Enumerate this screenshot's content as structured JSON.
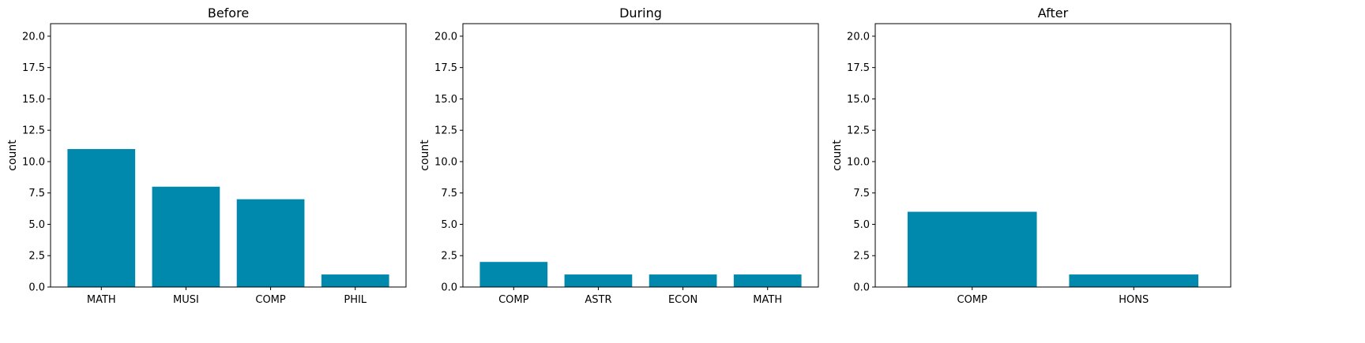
{
  "bar_color": "#0088ad",
  "chart_data": [
    {
      "type": "bar",
      "title": "Before",
      "xlabel": "",
      "ylabel": "count",
      "ylim": [
        0,
        21
      ],
      "yticks": [
        "0.0",
        "2.5",
        "5.0",
        "7.5",
        "10.0",
        "12.5",
        "15.0",
        "17.5",
        "20.0"
      ],
      "categories": [
        "MATH",
        "MUSI",
        "COMP",
        "PHIL"
      ],
      "values": [
        11,
        8,
        7,
        1
      ]
    },
    {
      "type": "bar",
      "title": "During",
      "xlabel": "",
      "ylabel": "count",
      "ylim": [
        0,
        21
      ],
      "yticks": [
        "0.0",
        "2.5",
        "5.0",
        "7.5",
        "10.0",
        "12.5",
        "15.0",
        "17.5",
        "20.0"
      ],
      "categories": [
        "COMP",
        "ASTR",
        "ECON",
        "MATH"
      ],
      "values": [
        2,
        1,
        1,
        1
      ]
    },
    {
      "type": "bar",
      "title": "After",
      "xlabel": "",
      "ylabel": "count",
      "ylim": [
        0,
        21
      ],
      "yticks": [
        "0.0",
        "2.5",
        "5.0",
        "7.5",
        "10.0",
        "12.5",
        "15.0",
        "17.5",
        "20.0"
      ],
      "categories": [
        "COMP",
        "HONS"
      ],
      "values": [
        6,
        1
      ]
    }
  ]
}
